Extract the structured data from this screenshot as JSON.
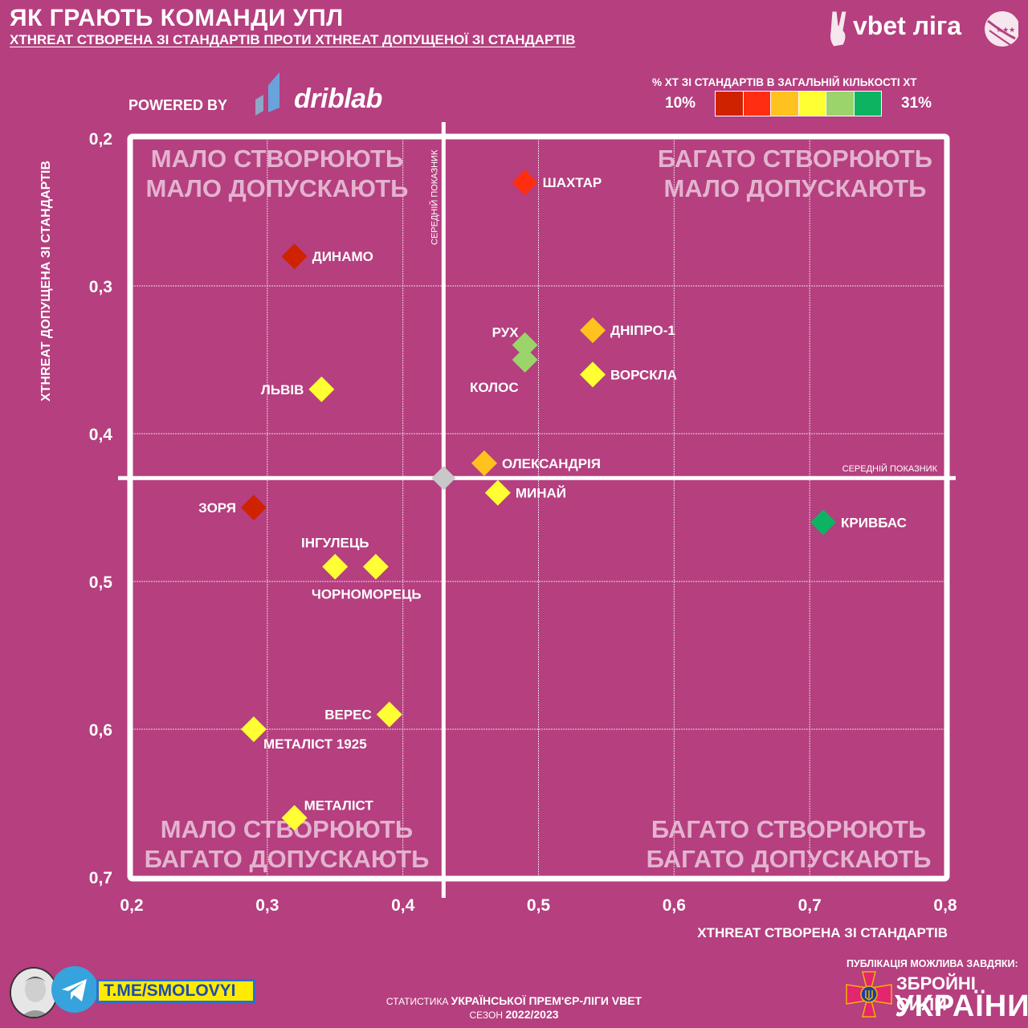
{
  "header": {
    "title": "ЯК ГРАЮТЬ КОМАНДИ УПЛ",
    "subtitle": "XTHREAT СТВОРЕНА ЗІ СТАНДАРТІВ ПРОТИ XTHREAT ДОПУЩЕНОЇ ЗІ СТАНДАРТІВ",
    "powered_by": "POWERED BY",
    "driblab": "driblab",
    "league_logo_text": "vbet ліга"
  },
  "legend": {
    "title": "% XT ЗІ СТАНДАРТІВ В ЗАГАЛЬНІЙ КІЛЬКОСТІ XT",
    "min_label": "10%",
    "max_label": "31%",
    "colors": [
      "#cf2200",
      "#ff2e10",
      "#ffc21f",
      "#ffff33",
      "#9bd46a",
      "#0cb462"
    ]
  },
  "chart_data": {
    "type": "scatter",
    "title": "ЯК ГРАЮТЬ КОМАНДИ УПЛ",
    "xlabel": "XTHREAT СТВОРЕНА ЗІ СТАНДАРТІВ",
    "ylabel": "XTHREAT ДОПУЩЕНА ЗІ СТАНДАРТІВ",
    "xlim": [
      0.2,
      0.8
    ],
    "ylim": [
      0.2,
      0.7
    ],
    "y_inverted": true,
    "grid": true,
    "x_ticks": [
      "0,2",
      "0,3",
      "0,4",
      "0,5",
      "0,6",
      "0,7",
      "0,8"
    ],
    "y_ticks": [
      "0,2",
      "0,3",
      "0,4",
      "0,5",
      "0,6",
      "0,7"
    ],
    "average": {
      "x": 0.43,
      "y": 0.43,
      "label": "СЕРЕДНІЙ ПОКАЗНИК",
      "color": "#c8c8c8"
    },
    "quadrants": {
      "top_left": [
        "МАЛО СТВОРЮЮТЬ",
        "МАЛО ДОПУСКАЮТЬ"
      ],
      "top_right": [
        "БАГАТО СТВОРЮЮТЬ",
        "МАЛО ДОПУСКАЮТЬ"
      ],
      "bottom_left": [
        "МАЛО СТВОРЮЮТЬ",
        "БАГАТО ДОПУСКАЮТЬ"
      ],
      "bottom_right": [
        "БАГАТО СТВОРЮЮТЬ",
        "БАГАТО ДОПУСКАЮТЬ"
      ]
    },
    "points": [
      {
        "team": "ШАХТАР",
        "x": 0.49,
        "y": 0.23,
        "color": "#ff2e10",
        "label_side": "right"
      },
      {
        "team": "ДИНАМО",
        "x": 0.32,
        "y": 0.28,
        "color": "#cf2200",
        "label_side": "right"
      },
      {
        "team": "ДНІПРО-1",
        "x": 0.54,
        "y": 0.33,
        "color": "#ffc21f",
        "label_side": "right"
      },
      {
        "team": "РУХ",
        "x": 0.49,
        "y": 0.34,
        "color": "#9bd46a",
        "label_side": "left-up"
      },
      {
        "team": "КОЛОС",
        "x": 0.49,
        "y": 0.35,
        "color": "#9bd46a",
        "label_side": "left-down"
      },
      {
        "team": "ВОРСКЛА",
        "x": 0.54,
        "y": 0.36,
        "color": "#ffff33",
        "label_side": "right"
      },
      {
        "team": "ЛЬВІВ",
        "x": 0.34,
        "y": 0.37,
        "color": "#ffff33",
        "label_side": "left"
      },
      {
        "team": "ОЛЕКСАНДРІЯ",
        "x": 0.46,
        "y": 0.42,
        "color": "#ffc21f",
        "label_side": "right"
      },
      {
        "team": "МИНАЙ",
        "x": 0.47,
        "y": 0.44,
        "color": "#ffff33",
        "label_side": "right"
      },
      {
        "team": "КРИВБАС",
        "x": 0.71,
        "y": 0.46,
        "color": "#0cb462",
        "label_side": "right"
      },
      {
        "team": "ЗОРЯ",
        "x": 0.29,
        "y": 0.45,
        "color": "#cf2200",
        "label_side": "left"
      },
      {
        "team": "ІНГУЛЕЦЬ",
        "x": 0.35,
        "y": 0.49,
        "color": "#ffff33",
        "label_side": "above"
      },
      {
        "team": "ЧОРНОМОРЕЦЬ",
        "x": 0.38,
        "y": 0.49,
        "color": "#ffff33",
        "label_side": "below"
      },
      {
        "team": "ВЕРЕС",
        "x": 0.39,
        "y": 0.59,
        "color": "#ffff33",
        "label_side": "left"
      },
      {
        "team": "МЕТАЛІСТ 1925",
        "x": 0.29,
        "y": 0.6,
        "color": "#ffff33",
        "label_side": "below-right"
      },
      {
        "team": "МЕТАЛІСТ",
        "x": 0.32,
        "y": 0.66,
        "color": "#ffff33",
        "label_side": "above-right"
      }
    ]
  },
  "footer": {
    "telegram": "T.ME/SMOLOVYI",
    "stats_prefix": "СТАТИСТИКА",
    "stats_league": "УКРАЇНСЬКОЇ ПРЕМ'ЄР-ЛІГИ VBET",
    "season_prefix": "СЕЗОН",
    "season": "2022/2023",
    "publication": "ПУБЛІКАЦІЯ МОЖЛИВА ЗАВДЯКИ:",
    "zsu_line1": "ЗБРОЙНІ СИЛИ",
    "zsu_line2": "УКРАЇНИ"
  }
}
